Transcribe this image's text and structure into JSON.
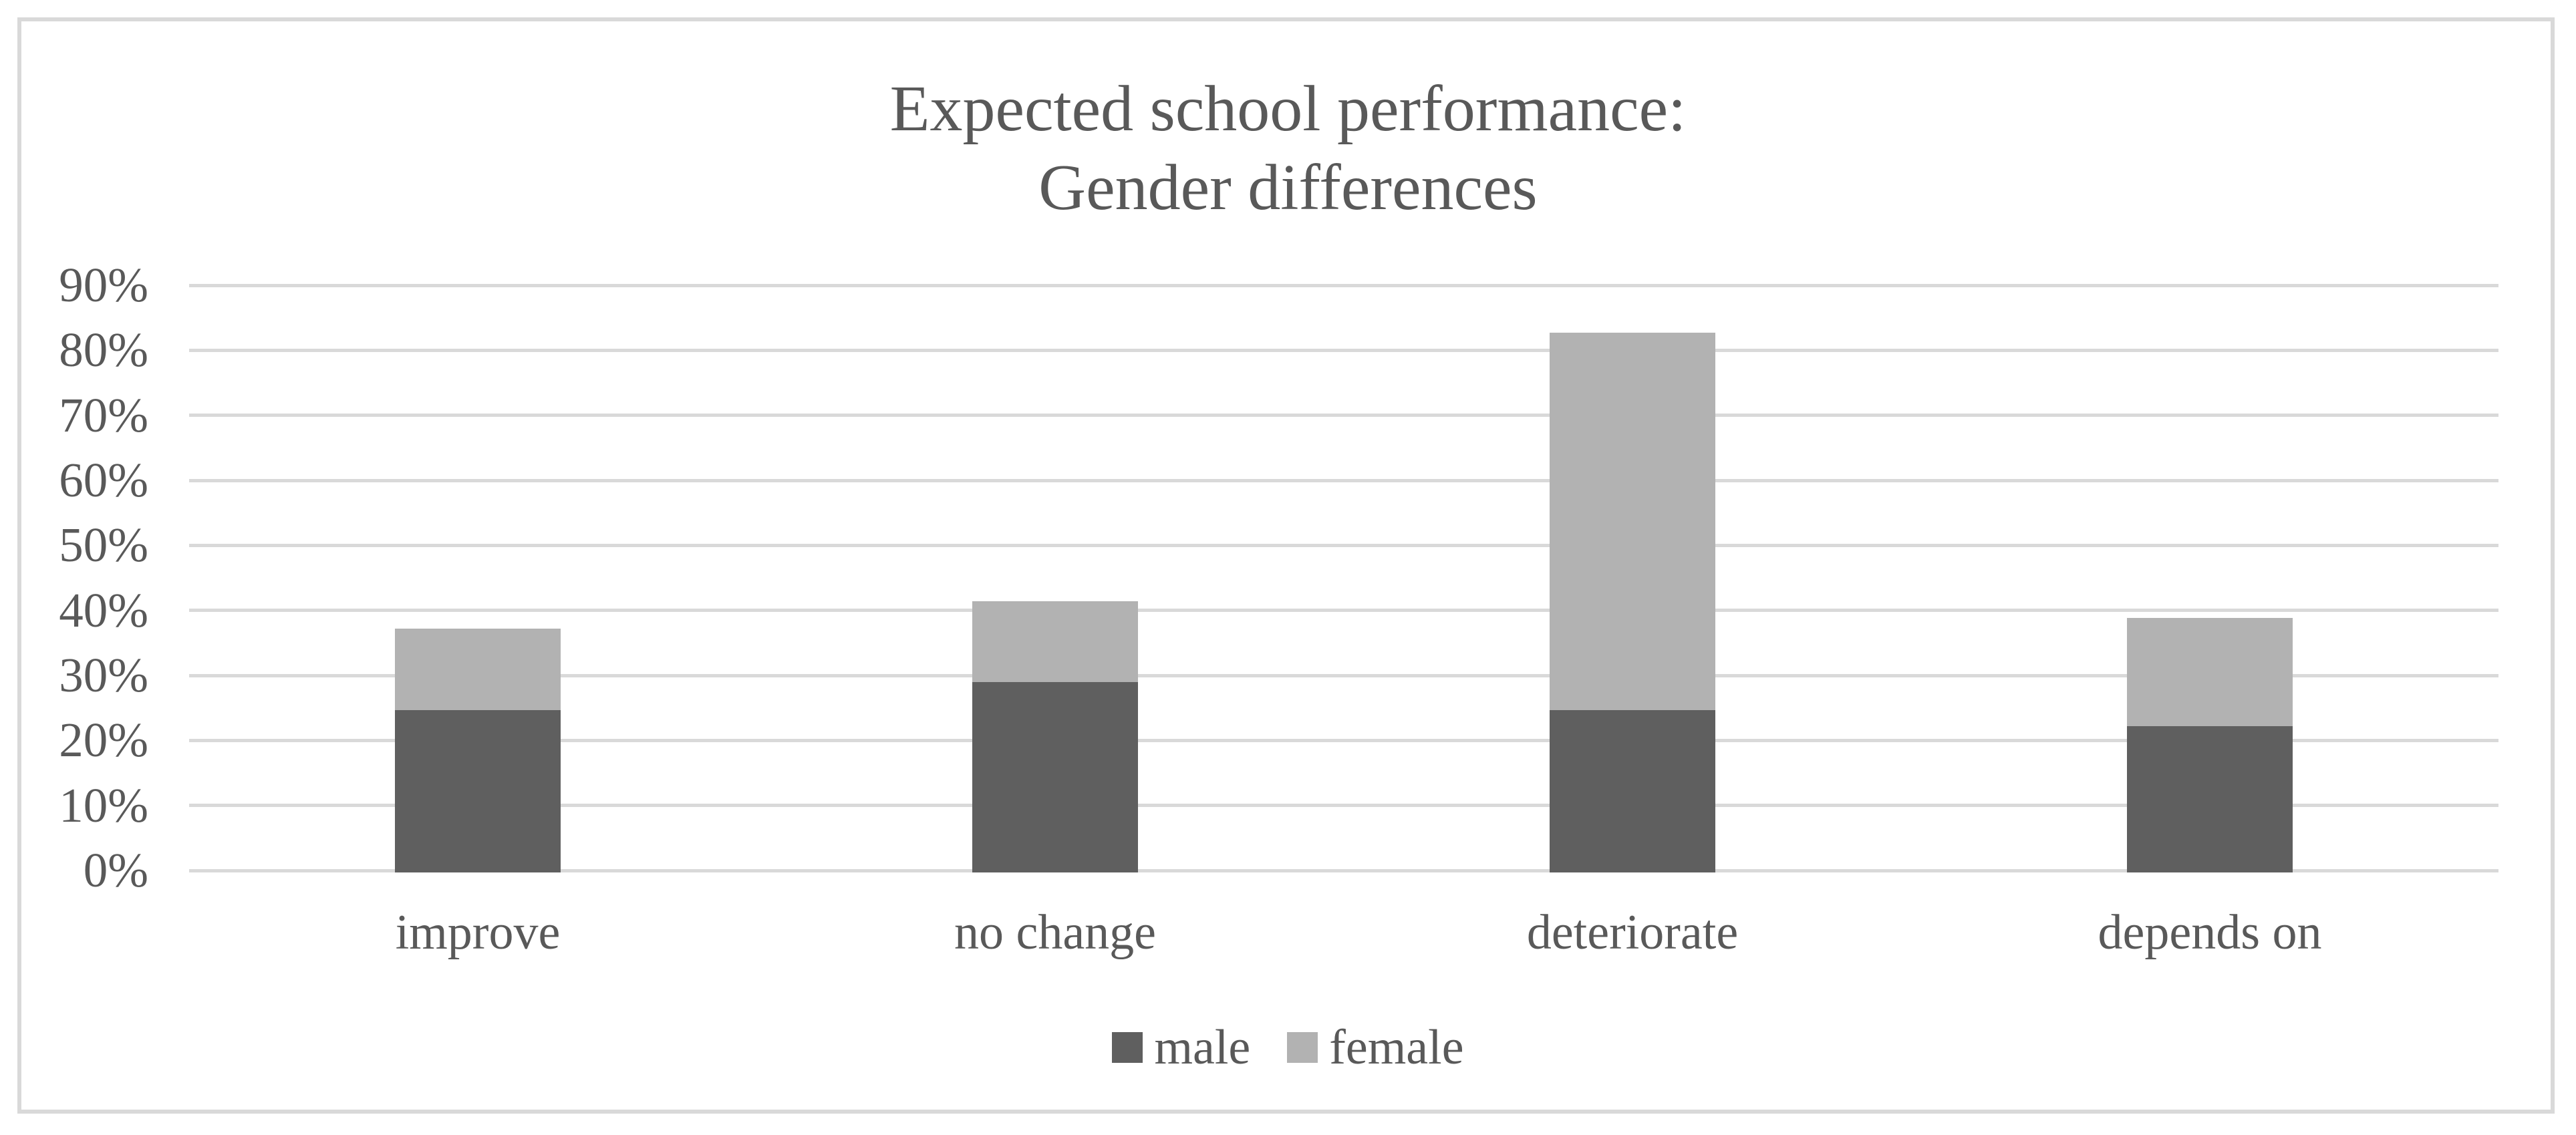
{
  "chart_data": {
    "type": "bar",
    "stacked": true,
    "title_line1": "Expected school performance:",
    "title_line2": "Gender differences",
    "categories": [
      "improve",
      "no change",
      "deteriorate",
      "depends on"
    ],
    "series": [
      {
        "name": "male",
        "color": "#5f5f5f",
        "values": [
          24.7,
          29.0,
          24.7,
          22.2
        ]
      },
      {
        "name": "female",
        "color": "#b2b2b2",
        "values": [
          12.5,
          12.4,
          58.0,
          16.6
        ]
      }
    ],
    "totals": [
      37.2,
      41.4,
      82.7,
      38.8
    ],
    "xlabel": "",
    "ylabel": "",
    "ytick_labels": [
      "0%",
      "10%",
      "20%",
      "30%",
      "40%",
      "50%",
      "60%",
      "70%",
      "80%",
      "90%"
    ],
    "ytick_values": [
      0,
      10,
      20,
      30,
      40,
      50,
      60,
      70,
      80,
      90
    ],
    "ylim": [
      0,
      90
    ],
    "grid": true,
    "legend_position": "bottom",
    "colors": {
      "gridline": "#d9d9d9",
      "frame_border": "#d9d9d9",
      "text": "#595959",
      "background": "#ffffff"
    }
  }
}
